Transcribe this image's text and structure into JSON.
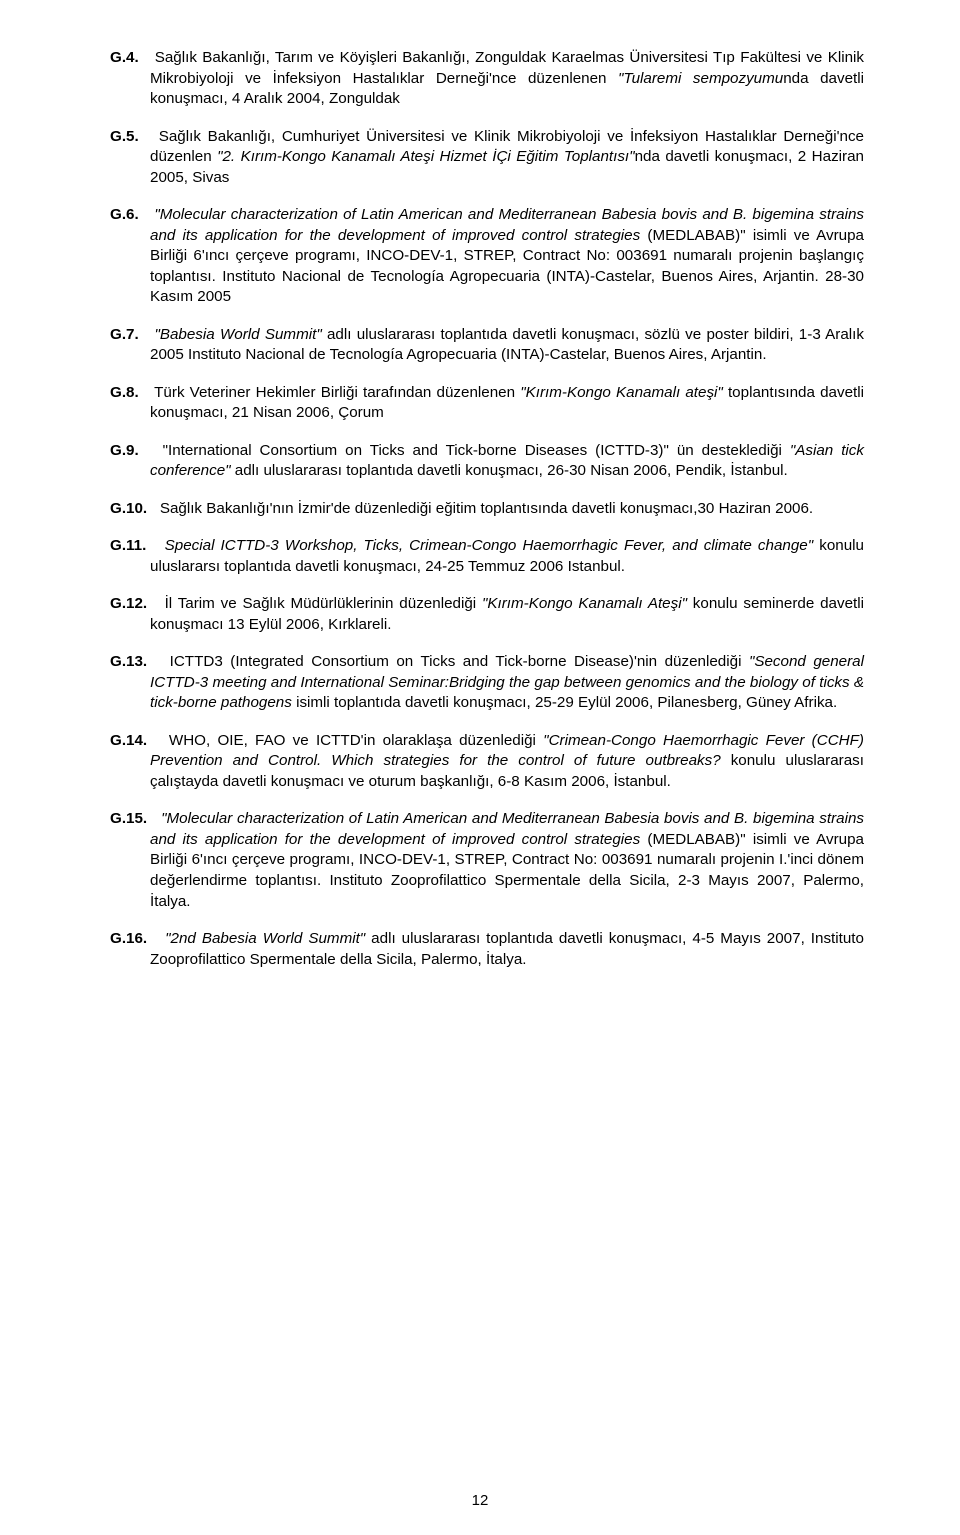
{
  "entries": [
    {
      "label": "G.4.",
      "body_html": "Sağlık Bakanlığı, Tarım ve Köyişleri Bakanlığı, Zonguldak Karaelmas Üniversitesi Tıp Fakültesi ve Klinik Mikrobiyoloji ve İnfeksiyon Hastalıklar Derneği'nce düzenlenen <em class='it'>\"Tularemi sempozyumu</em>nda davetli konuşmacı, 4 Aralık 2004, Zonguldak"
    },
    {
      "label": "G.5.",
      "body_html": "Sağlık Bakanlığı, Cumhuriyet Üniversitesi ve Klinik Mikrobiyoloji ve İnfeksiyon Hastalıklar Derneği'nce düzenlen <em class='it'>\"2. Kırım-Kongo Kanamalı Ateşi Hizmet İÇi Eğitim Toplantısı\"</em>nda davetli konuşmacı, 2 Haziran 2005, Sivas"
    },
    {
      "label": "G.6.",
      "body_html": "<em class='it'>\"Molecular characterization of Latin American and Mediterranean Babesia bovis and B. bigemina strains and its application for the development of improved control strategies</em> (MEDLABAB)\" isimli ve Avrupa Birliği 6'ıncı çerçeve programı, INCO-DEV-1, STREP, Contract No: 003691 numaralı projenin başlangıç toplantısı. Instituto Nacional de Tecnología Agropecuaria (INTA)-Castelar, Buenos Aires, Arjantin. 28-30 Kasım 2005"
    },
    {
      "label": "G.7.",
      "body_html": "<em class='it'>\"Babesia World Summit\"</em> adlı uluslararası toplantıda davetli konuşmacı, sözlü ve poster bildiri, 1-3 Aralık 2005 Instituto Nacional de Tecnología Agropecuaria (INTA)-Castelar, Buenos Aires, Arjantin."
    },
    {
      "label": "G.8.",
      "body_html": "Türk Veteriner Hekimler Birliği tarafından düzenlenen <em class='it'>\"Kırım-Kongo Kanamalı ateşi\"</em> toplantısında davetli konuşmacı, 21 Nisan 2006, Çorum"
    },
    {
      "label": "G.9.",
      "body_html": "\"International Consortium on Ticks and Tick-borne Diseases (ICTTD-3)\" ün desteklediği <em class='it'>\"Asian tick conference\"</em> adlı uluslararası toplantıda davetli konuşmacı, 26-30 Nisan 2006, Pendik, İstanbul."
    },
    {
      "label": "G.10.",
      "body_html": "Sağlık Bakanlığı'nın İzmir'de düzenlediği eğitim toplantısında davetli konuşmacı,30 Haziran 2006."
    },
    {
      "label": "G.11.",
      "body_html": "<em class='it'>Special ICTTD-3 Workshop, Ticks, Crimean-Congo Haemorrhagic Fever, and climate change\"</em> konulu uluslararsı toplantıda davetli konuşmacı, 24-25 Temmuz 2006 Istanbul."
    },
    {
      "label": "G.12.",
      "body_html": "İl Tarim ve Sağlık Müdürlüklerinin düzenlediği <em class='it'>\"Kırım-Kongo Kanamalı Ateşi\"</em> konulu seminerde davetli konuşmacı 13 Eylül 2006, Kırklareli."
    },
    {
      "label": "G.13.",
      "body_html": "ICTTD3 (Integrated Consortium on Ticks and Tick-borne Disease)'nin düzenlediği <em class='it'>\"Second general ICTTD-3 meeting and International Seminar:Bridging the gap between genomics and the biology of ticks &amp; tick-borne pathogens</em> isimli toplantıda davetli konuşmacı, 25-29 Eylül 2006, Pilanesberg, Güney Afrika."
    },
    {
      "label": "G.14.",
      "body_html": "WHO, OIE, FAO ve ICTTD'in olaraklaşa düzenlediği <em class='it'>\"Crimean-Congo Haemorrhagic Fever (CCHF) Prevention and Control. Which strategies for the control of future outbreaks?</em> konulu uluslararası çalıştayda davetli konuşmacı ve oturum başkanlığı, 6-8 Kasım 2006, İstanbul."
    },
    {
      "label": "G.15.",
      "body_html": "<em class='it'>\"Molecular characterization of Latin American and Mediterranean Babesia bovis and B. bigemina strains and its application for the development of improved control strategies</em> (MEDLABAB)\" isimli ve Avrupa Birliği 6'ıncı çerçeve programı, INCO-DEV-1, STREP, Contract No: 003691 numaralı projenin I.'inci dönem değerlendirme toplantısı. Instituto Zooprofilattico Spermentale della Sicila, 2-3 Mayıs 2007, Palermo, İtalya."
    },
    {
      "label": "G.16.",
      "body_html": "<em class='it'>\"2nd Babesia World Summit\"</em> adlı uluslararası toplantıda davetli konuşmacı, 4-5 Mayıs 2007, Instituto Zooprofilattico Spermentale della Sicila, Palermo, İtalya."
    }
  ],
  "page_number": "12"
}
